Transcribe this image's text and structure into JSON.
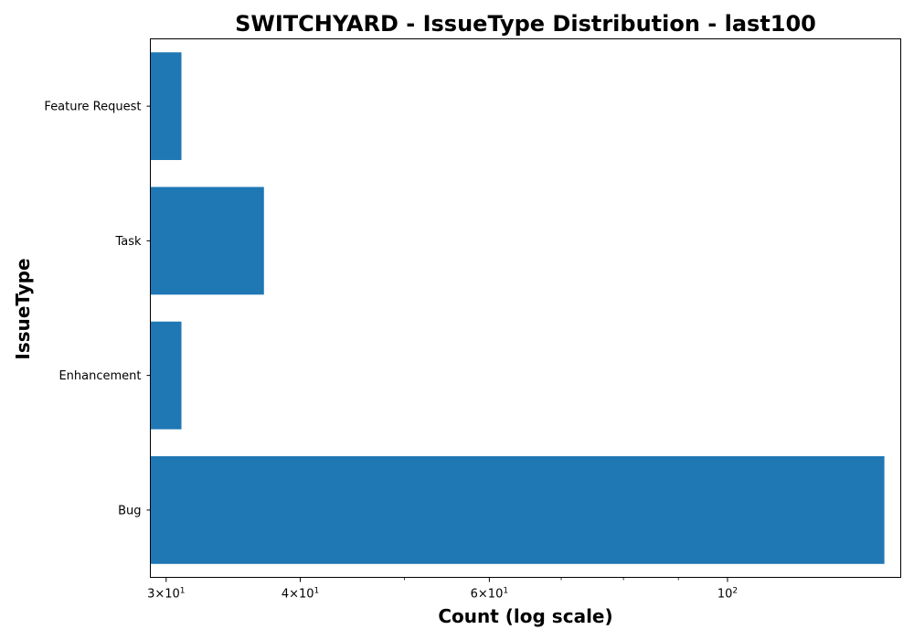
{
  "chart_data": {
    "type": "bar",
    "orientation": "horizontal",
    "title": "SWITCHYARD - IssueType Distribution - last100",
    "xlabel": "Count (log scale)",
    "ylabel": "IssueType",
    "x_scale": "log",
    "xlim": [
      29,
      145
    ],
    "categories": [
      "Bug",
      "Enhancement",
      "Task",
      "Feature Request"
    ],
    "values": [
      140,
      31,
      37,
      31
    ],
    "x_ticks": [
      {
        "value": 30,
        "base": "3",
        "exp": "1"
      },
      {
        "value": 40,
        "base": "4",
        "exp": "1"
      },
      {
        "value": 60,
        "base": "6",
        "exp": "1"
      },
      {
        "value": 100,
        "base": "",
        "exp": "2"
      }
    ],
    "x_minor_ticks": [
      50,
      70,
      80,
      90
    ],
    "bar_color": "#1f77b4",
    "grid": false,
    "legend": "none"
  }
}
